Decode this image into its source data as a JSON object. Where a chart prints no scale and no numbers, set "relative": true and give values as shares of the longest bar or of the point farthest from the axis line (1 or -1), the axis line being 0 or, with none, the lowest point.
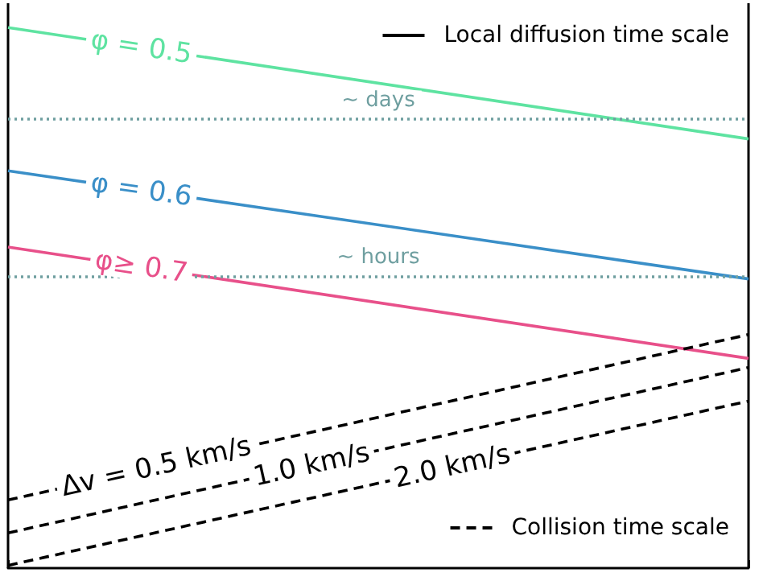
{
  "chart_data": {
    "type": "line",
    "relative": true,
    "categories": [
      null,
      null
    ],
    "series": [
      {
        "name": "φ = 0.5",
        "color": "#5ee3a1",
        "values": [
          1,
          0.794
        ]
      },
      {
        "name": "φ = 0.6",
        "color": "#3a8fc8",
        "values": [
          0.735,
          0.535
        ]
      },
      {
        "name": "φ≥ 0.7",
        "color": "#e8508a",
        "values": [
          0.594,
          0.388
        ]
      },
      {
        "name": "Δv = 0.5 km/s",
        "color": "#000000",
        "line_style": "dashed",
        "values": [
          0.126,
          0.432
        ]
      },
      {
        "name": "1.0 km/s",
        "color": "#000000",
        "line_style": "dashed",
        "values": [
          0.065,
          0.371
        ]
      },
      {
        "name": "2.0 km/s",
        "color": "#000000",
        "line_style": "dashed",
        "values": [
          0.005,
          0.309
        ]
      }
    ],
    "line_style": "solid",
    "marker": "none",
    "grid": false,
    "ref_lines": [
      {
        "axis": "y",
        "value": 0.83,
        "label": "~ days",
        "color": "#6f9fa0",
        "line_style": "dotted"
      },
      {
        "axis": "y",
        "value": 0.538,
        "label": "~ hours",
        "color": "#6f9fa0",
        "line_style": "dotted"
      }
    ],
    "annotations": [
      "Local diffusion time scale",
      "Collision time scale"
    ]
  }
}
